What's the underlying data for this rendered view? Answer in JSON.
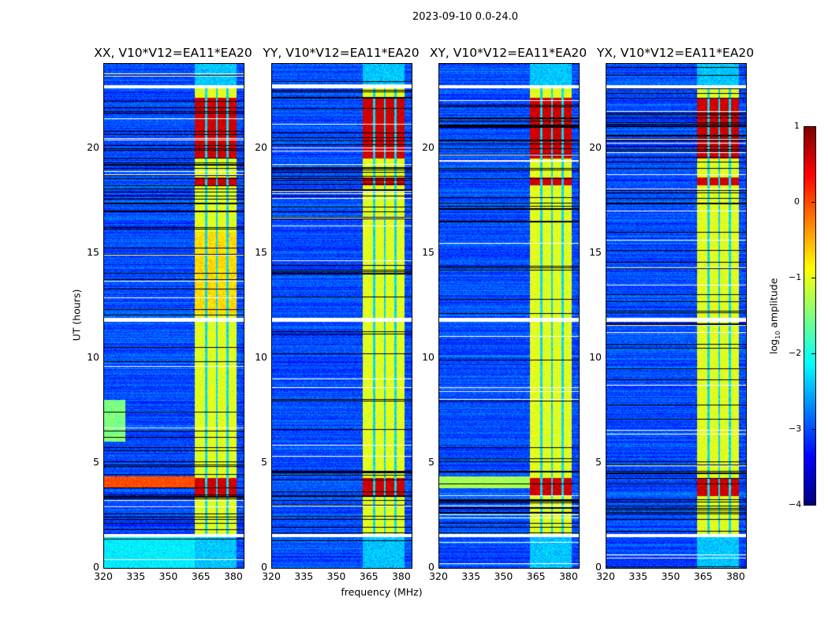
{
  "figure": {
    "suptitle": "2023-09-10 0.0-24.0",
    "xlabel": "frequency (MHz)",
    "ylabel": "UT (hours)",
    "colorbar_label_prefix": "log",
    "colorbar_label_sub": "10",
    "colorbar_label_suffix": " amplitude"
  },
  "chart_data": {
    "type": "heatmap",
    "colormap": "jet",
    "x_range": [
      320,
      384.4
    ],
    "y_range": [
      0,
      24
    ],
    "x_ticks": [
      "320",
      "335",
      "350",
      "365",
      "380"
    ],
    "y_ticks": [
      "0",
      "5",
      "10",
      "15",
      "20"
    ],
    "color_range": [
      -4,
      1
    ],
    "colorbar_ticks": [
      "1",
      "0",
      "−1",
      "−2",
      "−3",
      "−4"
    ],
    "panels": [
      {
        "title": "XX, V10*V12=EA11*EA20",
        "pol": "XX"
      },
      {
        "title": "YY, V10*V12=EA11*EA20",
        "pol": "YY"
      },
      {
        "title": "XY, V10*V12=EA11*EA20",
        "pol": "XY"
      },
      {
        "title": "YX, V10*V12=EA11*EA20",
        "pol": "YX"
      }
    ],
    "signal_band_mhz": [
      362,
      381
    ],
    "subband_edges_mhz": [
      367,
      372,
      377
    ],
    "background_level": -3,
    "band_level": -1,
    "strong_hours": [
      [
        3.4,
        4.3
      ],
      [
        18.2,
        18.6
      ],
      [
        19.5,
        22.4
      ]
    ],
    "flagged_hours": [
      [
        1.45,
        1.62
      ],
      [
        11.72,
        11.92
      ],
      [
        22.85,
        23.0
      ]
    ]
  }
}
